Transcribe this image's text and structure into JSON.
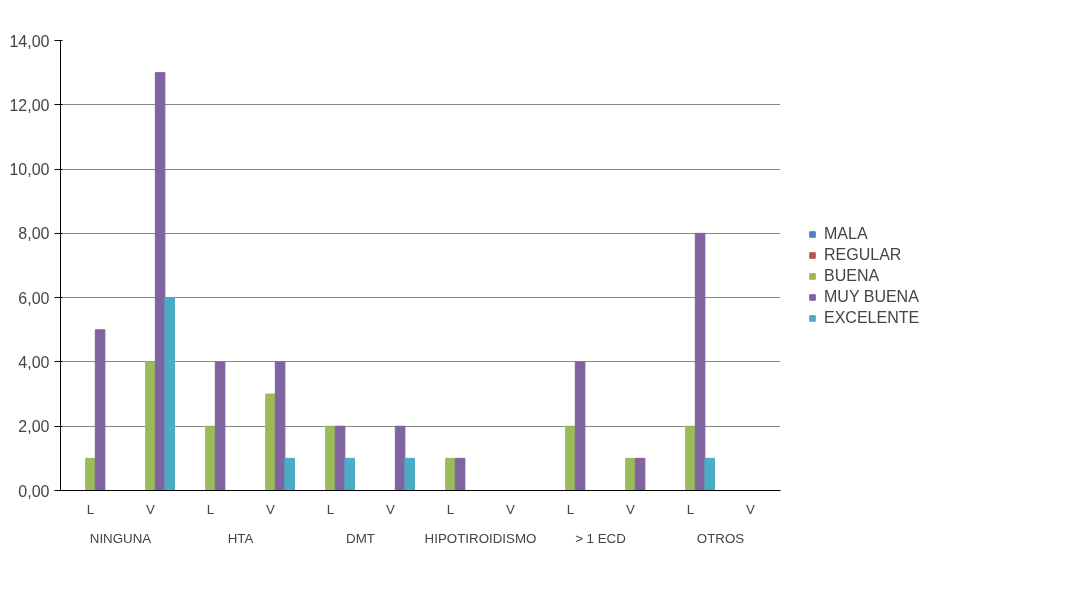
{
  "chart_data": {
    "type": "bar",
    "categories": [
      "L",
      "V",
      "L",
      "V",
      "L",
      "V",
      "L",
      "V",
      "L",
      "V",
      "L",
      "V"
    ],
    "annotations": [
      "NINGUNA",
      "HTA",
      "DMT",
      "HIPOTIROIDISMO",
      "> 1 ECD",
      "OTROS"
    ],
    "series": [
      {
        "name": "MALA",
        "color": "#4f81bd",
        "values": [
          0,
          0,
          0,
          0,
          0,
          0,
          0,
          0,
          0,
          0,
          0,
          0
        ]
      },
      {
        "name": "REGULAR",
        "color": "#c0504d",
        "values": [
          0,
          0,
          0,
          0,
          0,
          0,
          0,
          0,
          0,
          0,
          0,
          0
        ]
      },
      {
        "name": "BUENA",
        "color": "#9bbb59",
        "values": [
          1,
          4,
          2,
          3,
          2,
          0,
          1,
          0,
          2,
          1,
          2,
          0
        ]
      },
      {
        "name": "MUY BUENA",
        "color": "#8064a2",
        "values": [
          5,
          13,
          4,
          4,
          2,
          2,
          1,
          0,
          4,
          1,
          8,
          0
        ]
      },
      {
        "name": "EXCELENTE",
        "color": "#4bacc6",
        "values": [
          0,
          6,
          0,
          1,
          1,
          1,
          0,
          0,
          0,
          0,
          1,
          0
        ]
      }
    ],
    "ylim": [
      0,
      14
    ],
    "yticks": [
      {
        "value": 0,
        "label": "0,00"
      },
      {
        "value": 2,
        "label": "2,00"
      },
      {
        "value": 4,
        "label": "4,00"
      },
      {
        "value": 6,
        "label": "6,00"
      },
      {
        "value": 8,
        "label": "8,00"
      },
      {
        "value": 10,
        "label": "10,00"
      },
      {
        "value": 12,
        "label": "12,00"
      },
      {
        "value": 14,
        "label": "14,00"
      }
    ],
    "grid": "y",
    "legend": "right"
  }
}
